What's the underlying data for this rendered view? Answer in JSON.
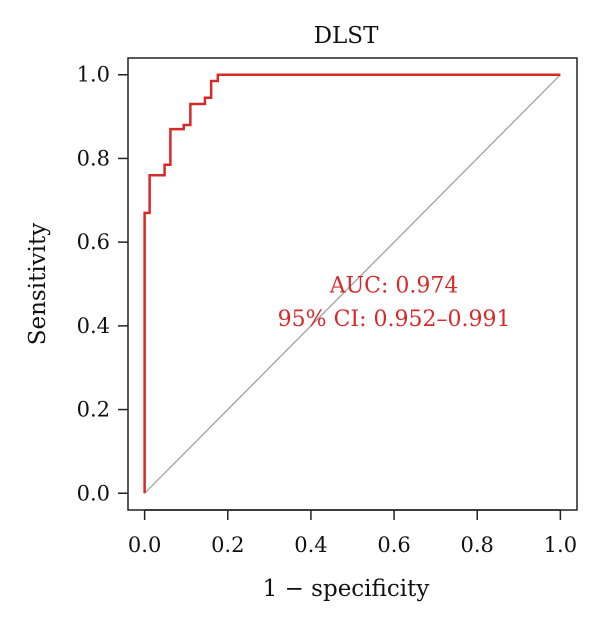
{
  "chart_data": {
    "type": "line",
    "title": "DLST",
    "xlabel": "1 − specificity",
    "ylabel": "Sensitivity",
    "xlim": [
      -0.04,
      1.04
    ],
    "ylim": [
      -0.04,
      1.04
    ],
    "x_ticks": [
      "0.0",
      "0.2",
      "0.4",
      "0.6",
      "0.8",
      "1.0"
    ],
    "y_ticks": [
      "0.0",
      "0.2",
      "0.4",
      "0.6",
      "0.8",
      "1.0"
    ],
    "grid": false,
    "series": [
      {
        "color": "#d62a2a",
        "x": [
          0.0,
          0.0,
          0.0,
          0.012,
          0.012,
          0.048,
          0.048,
          0.062,
          0.062,
          0.094,
          0.094,
          0.11,
          0.11,
          0.145,
          0.145,
          0.16,
          0.16,
          0.176,
          0.176,
          1.0
        ],
        "y": [
          0.0,
          0.67,
          0.67,
          0.67,
          0.76,
          0.76,
          0.785,
          0.785,
          0.87,
          0.87,
          0.88,
          0.88,
          0.93,
          0.93,
          0.945,
          0.945,
          0.985,
          0.985,
          1.0,
          1.0
        ]
      }
    ],
    "reference_line": {
      "x": [
        0.0,
        1.0
      ],
      "y": [
        0.0,
        1.0
      ],
      "color": "#999999"
    },
    "annotations": [
      {
        "text": "AUC: 0.974",
        "x": 0.6,
        "y": 0.48,
        "color": "#d62a2a"
      },
      {
        "text": "95% CI: 0.952–0.991",
        "x": 0.6,
        "y": 0.4,
        "color": "#d62a2a"
      }
    ]
  }
}
